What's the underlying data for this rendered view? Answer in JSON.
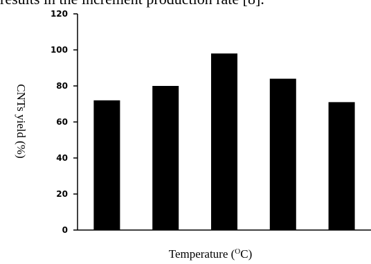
{
  "context_text": "results in the increment production rate [8].",
  "chart_data": {
    "type": "bar",
    "categories": [
      "",
      "",
      "",
      "",
      ""
    ],
    "values": [
      72,
      80,
      98,
      84,
      71
    ],
    "ylabel": "CNTs yield (%)",
    "xlabel_prefix": "Temperature (",
    "xlabel_sup": "O",
    "xlabel_suffix": "C)",
    "ylim": [
      0,
      120
    ],
    "yticks": [
      0,
      20,
      40,
      60,
      80,
      100,
      120
    ],
    "grid": false,
    "bar_color": "#000000"
  }
}
